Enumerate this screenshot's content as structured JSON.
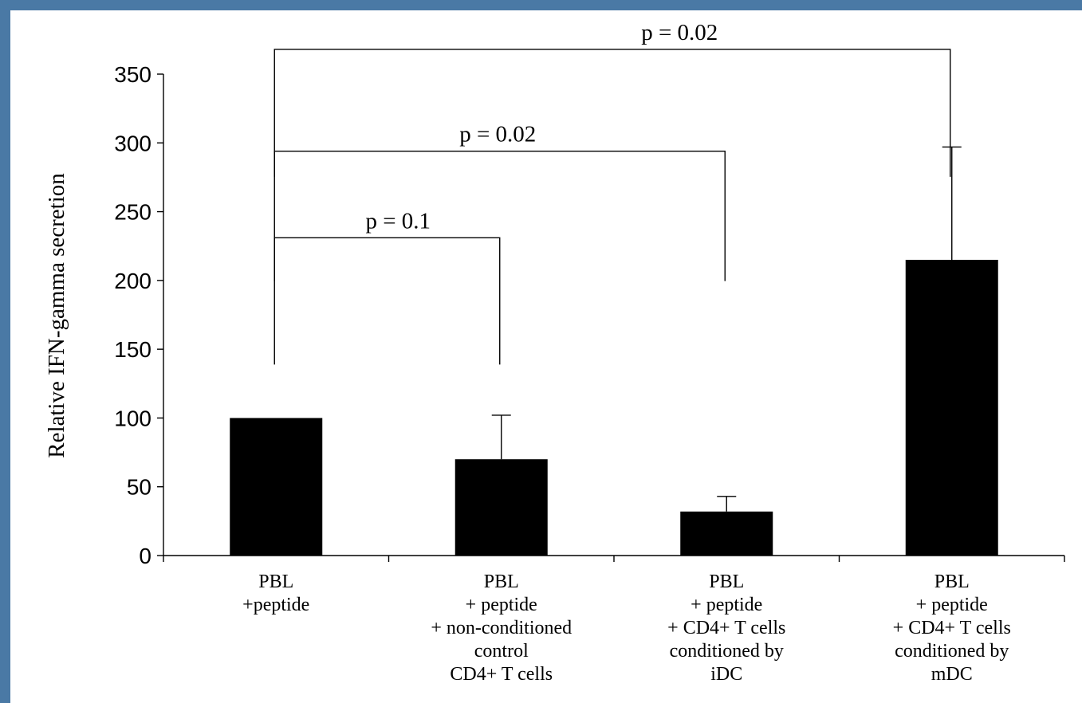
{
  "colors": {
    "frame": "#4a79a5",
    "background": "#ffffff",
    "bar": "#000000"
  },
  "chart_data": {
    "type": "bar",
    "title": "",
    "xlabel": "",
    "ylabel": "Relative IFN-gamma secretion",
    "ylim": [
      0,
      350
    ],
    "yticks": [
      0,
      50,
      100,
      150,
      200,
      250,
      300,
      350
    ],
    "categories": [
      "PBL\n+peptide",
      "PBL\n+ peptide\n+ non-conditioned\ncontrol\nCD4+ T cells",
      "PBL\n+ peptide\n+ CD4+ T cells\nconditioned by\niDC",
      "PBL\n+ peptide\n+ CD4+ T cells\nconditioned by\nmDC"
    ],
    "values": [
      100,
      70,
      32,
      215
    ],
    "error_plus": [
      0,
      32,
      11,
      82
    ],
    "grid": false,
    "legend": "none",
    "significance": [
      {
        "from": 0,
        "to": 1,
        "label": "p = 0.1",
        "level": 231
      },
      {
        "from": 0,
        "to": 2,
        "label": "p = 0.02",
        "level": 294
      },
      {
        "from": 0,
        "to": 3,
        "label": "p = 0.02",
        "level": 368
      }
    ]
  }
}
